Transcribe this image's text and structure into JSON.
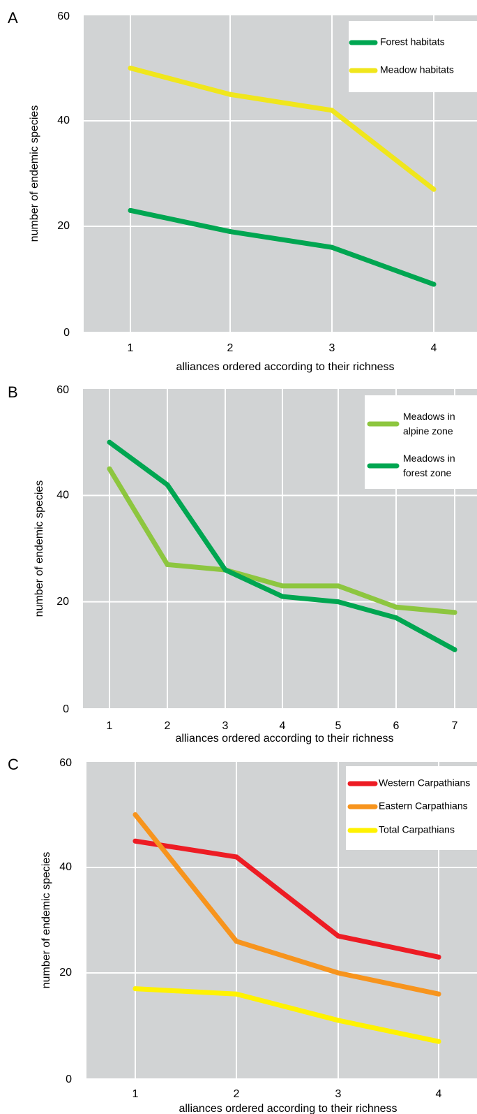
{
  "chart_data": [
    {
      "panel": "A",
      "type": "line",
      "xlabel": "alliances ordered according to their richness",
      "ylabel": "number of endemic species",
      "categories": [
        "1",
        "2",
        "3",
        "4"
      ],
      "yticks": [
        "0",
        "20",
        "40",
        "60"
      ],
      "ylim": [
        0,
        60
      ],
      "grid": true,
      "legend_position": "top-right",
      "series": [
        {
          "name": "Forest habitats",
          "color": "#00a651",
          "values": [
            23,
            19,
            16,
            9
          ]
        },
        {
          "name": "Meadow habitats",
          "color": "#f0e61c",
          "values": [
            50,
            45,
            42,
            27
          ]
        }
      ]
    },
    {
      "panel": "B",
      "type": "line",
      "xlabel": "alliances ordered according to their richness",
      "ylabel": "number of endemic species",
      "categories": [
        "1",
        "2",
        "3",
        "4",
        "5",
        "6",
        "7"
      ],
      "yticks": [
        "0",
        "20",
        "40",
        "60"
      ],
      "ylim": [
        0,
        60
      ],
      "grid": true,
      "legend_position": "top-right",
      "series": [
        {
          "name": "Meadows in alpine zone",
          "name_lines": [
            "Meadows in",
            "alpine zone"
          ],
          "color": "#8dc63f",
          "values": [
            45,
            27,
            26,
            23,
            23,
            19,
            18
          ]
        },
        {
          "name": "Meadows in forest zone",
          "name_lines": [
            "Meadows in",
            "forest zone"
          ],
          "color": "#00a651",
          "values": [
            50,
            42,
            26,
            21,
            20,
            17,
            11
          ]
        }
      ]
    },
    {
      "panel": "C",
      "type": "line",
      "xlabel": "alliances ordered according to their richness",
      "ylabel": "number of endemic species",
      "categories": [
        "1",
        "2",
        "3",
        "4"
      ],
      "yticks": [
        "0",
        "20",
        "40",
        "60"
      ],
      "ylim": [
        0,
        60
      ],
      "grid": true,
      "legend_position": "top-right",
      "series": [
        {
          "name": "Western Carpathians",
          "color": "#ed1c24",
          "values": [
            45,
            42,
            27,
            23
          ]
        },
        {
          "name": "Eastern Carpathians",
          "color": "#f7941d",
          "values": [
            50,
            26,
            20,
            16
          ]
        },
        {
          "name": "Total Carpathians",
          "color": "#fff200",
          "values": [
            17,
            16,
            11,
            7
          ]
        }
      ]
    }
  ]
}
